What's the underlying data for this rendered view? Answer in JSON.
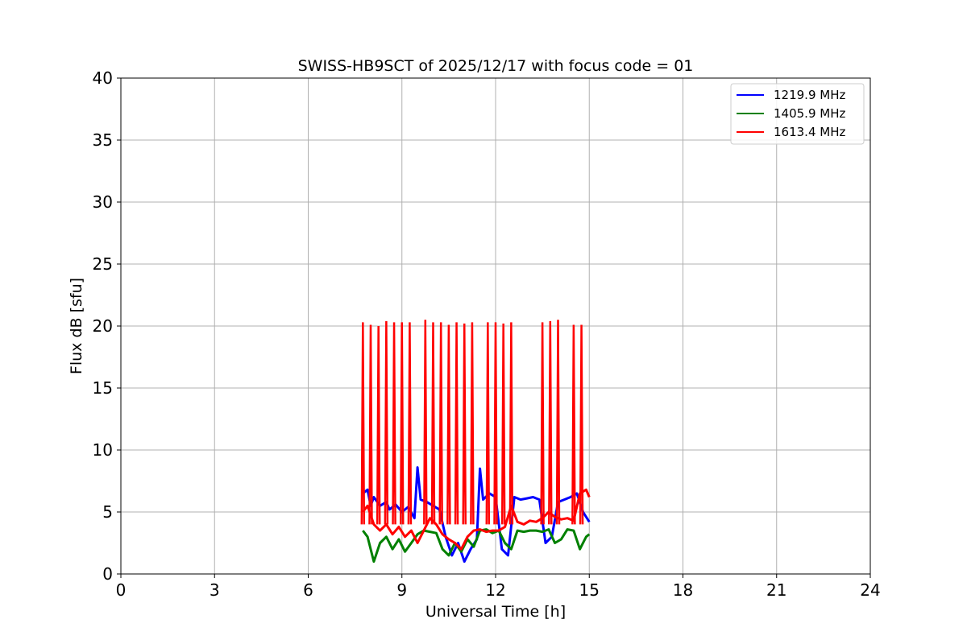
{
  "chart_data": {
    "type": "line",
    "title": "SWISS-HB9SCT of 2025/12/17 with focus code = 01",
    "xlabel": "Universal Time [h]",
    "ylabel": "Flux dB [sfu]",
    "xlim": [
      0,
      24
    ],
    "ylim": [
      0,
      40
    ],
    "xticks": [
      0,
      3,
      6,
      9,
      12,
      15,
      18,
      21,
      24
    ],
    "yticks": [
      0,
      5,
      10,
      15,
      20,
      25,
      30,
      35,
      40
    ],
    "grid": true,
    "legend_position": "top-right",
    "series": [
      {
        "name": "1219.9 MHz",
        "color": "#0000ff",
        "x": [
          7.75,
          7.9,
          8.0,
          8.1,
          8.3,
          8.5,
          8.6,
          8.8,
          9.0,
          9.2,
          9.4,
          9.5,
          9.6,
          9.8,
          10.0,
          10.2,
          10.4,
          10.6,
          10.8,
          11.0,
          11.2,
          11.4,
          11.5,
          11.6,
          11.8,
          12.0,
          12.2,
          12.4,
          12.6,
          12.8,
          13.0,
          13.2,
          13.4,
          13.6,
          13.8,
          14.0,
          14.2,
          14.4,
          14.6,
          14.8,
          15.0
        ],
        "y": [
          6.5,
          6.8,
          5.5,
          6.2,
          5.5,
          5.8,
          5.2,
          5.6,
          5.0,
          5.4,
          4.5,
          8.6,
          6.0,
          5.8,
          5.5,
          5.2,
          3.0,
          1.5,
          2.5,
          1.0,
          2.0,
          2.8,
          8.5,
          6.0,
          6.5,
          6.2,
          2.0,
          1.5,
          6.2,
          6.0,
          6.1,
          6.2,
          6.0,
          2.5,
          3.0,
          5.8,
          6.0,
          6.2,
          6.5,
          5.0,
          4.2
        ]
      },
      {
        "name": "1405.9 MHz",
        "color": "#008000",
        "x": [
          7.75,
          7.9,
          8.0,
          8.1,
          8.3,
          8.5,
          8.7,
          8.9,
          9.1,
          9.3,
          9.5,
          9.7,
          9.9,
          10.1,
          10.3,
          10.5,
          10.7,
          10.9,
          11.1,
          11.3,
          11.5,
          11.7,
          11.9,
          12.1,
          12.3,
          12.5,
          12.7,
          12.9,
          13.1,
          13.3,
          13.5,
          13.7,
          13.9,
          14.1,
          14.3,
          14.5,
          14.7,
          14.9,
          15.0
        ],
        "y": [
          3.5,
          3.0,
          2.0,
          1.0,
          2.5,
          3.0,
          2.0,
          2.8,
          1.8,
          2.5,
          3.2,
          3.5,
          3.4,
          3.3,
          2.0,
          1.5,
          2.5,
          1.8,
          2.8,
          2.2,
          3.5,
          3.6,
          3.3,
          3.5,
          2.5,
          2.0,
          3.5,
          3.4,
          3.5,
          3.5,
          3.4,
          3.6,
          2.5,
          2.8,
          3.6,
          3.5,
          2.0,
          3.0,
          3.2
        ]
      },
      {
        "name": "1613.4 MHz",
        "color": "#ff0000",
        "x": [
          7.75,
          7.9,
          8.1,
          8.3,
          8.5,
          8.7,
          8.9,
          9.1,
          9.3,
          9.5,
          9.7,
          9.9,
          10.1,
          10.3,
          10.5,
          10.7,
          10.9,
          11.1,
          11.3,
          11.5,
          11.7,
          11.9,
          12.1,
          12.3,
          12.5,
          12.7,
          12.9,
          13.1,
          13.3,
          13.5,
          13.7,
          13.9,
          14.1,
          14.3,
          14.5,
          14.7,
          14.9,
          15.0
        ],
        "y": [
          5.0,
          5.5,
          4.0,
          3.5,
          4.0,
          3.2,
          3.8,
          3.0,
          3.5,
          2.5,
          3.5,
          4.5,
          4.0,
          3.2,
          2.8,
          2.5,
          2.0,
          3.0,
          3.5,
          3.6,
          3.4,
          3.5,
          3.5,
          3.8,
          5.5,
          4.2,
          4.0,
          4.3,
          4.2,
          4.5,
          5.0,
          4.6,
          4.4,
          4.5,
          4.3,
          6.5,
          6.8,
          6.2
        ]
      }
    ],
    "spikes": {
      "series": "1613.4 MHz",
      "x": [
        7.75,
        8.0,
        8.25,
        8.5,
        8.75,
        9.0,
        9.25,
        9.75,
        10.0,
        10.25,
        10.5,
        10.75,
        11.0,
        11.25,
        11.75,
        12.0,
        12.25,
        12.5,
        13.5,
        13.75,
        14.0,
        14.5,
        14.75
      ],
      "y": [
        20.3,
        20.1,
        20.0,
        20.4,
        20.3,
        20.3,
        20.3,
        20.5,
        20.3,
        20.3,
        20.1,
        20.3,
        20.2,
        20.3,
        20.3,
        20.3,
        20.2,
        20.3,
        20.3,
        20.4,
        20.5,
        20.1,
        20.1
      ]
    }
  }
}
